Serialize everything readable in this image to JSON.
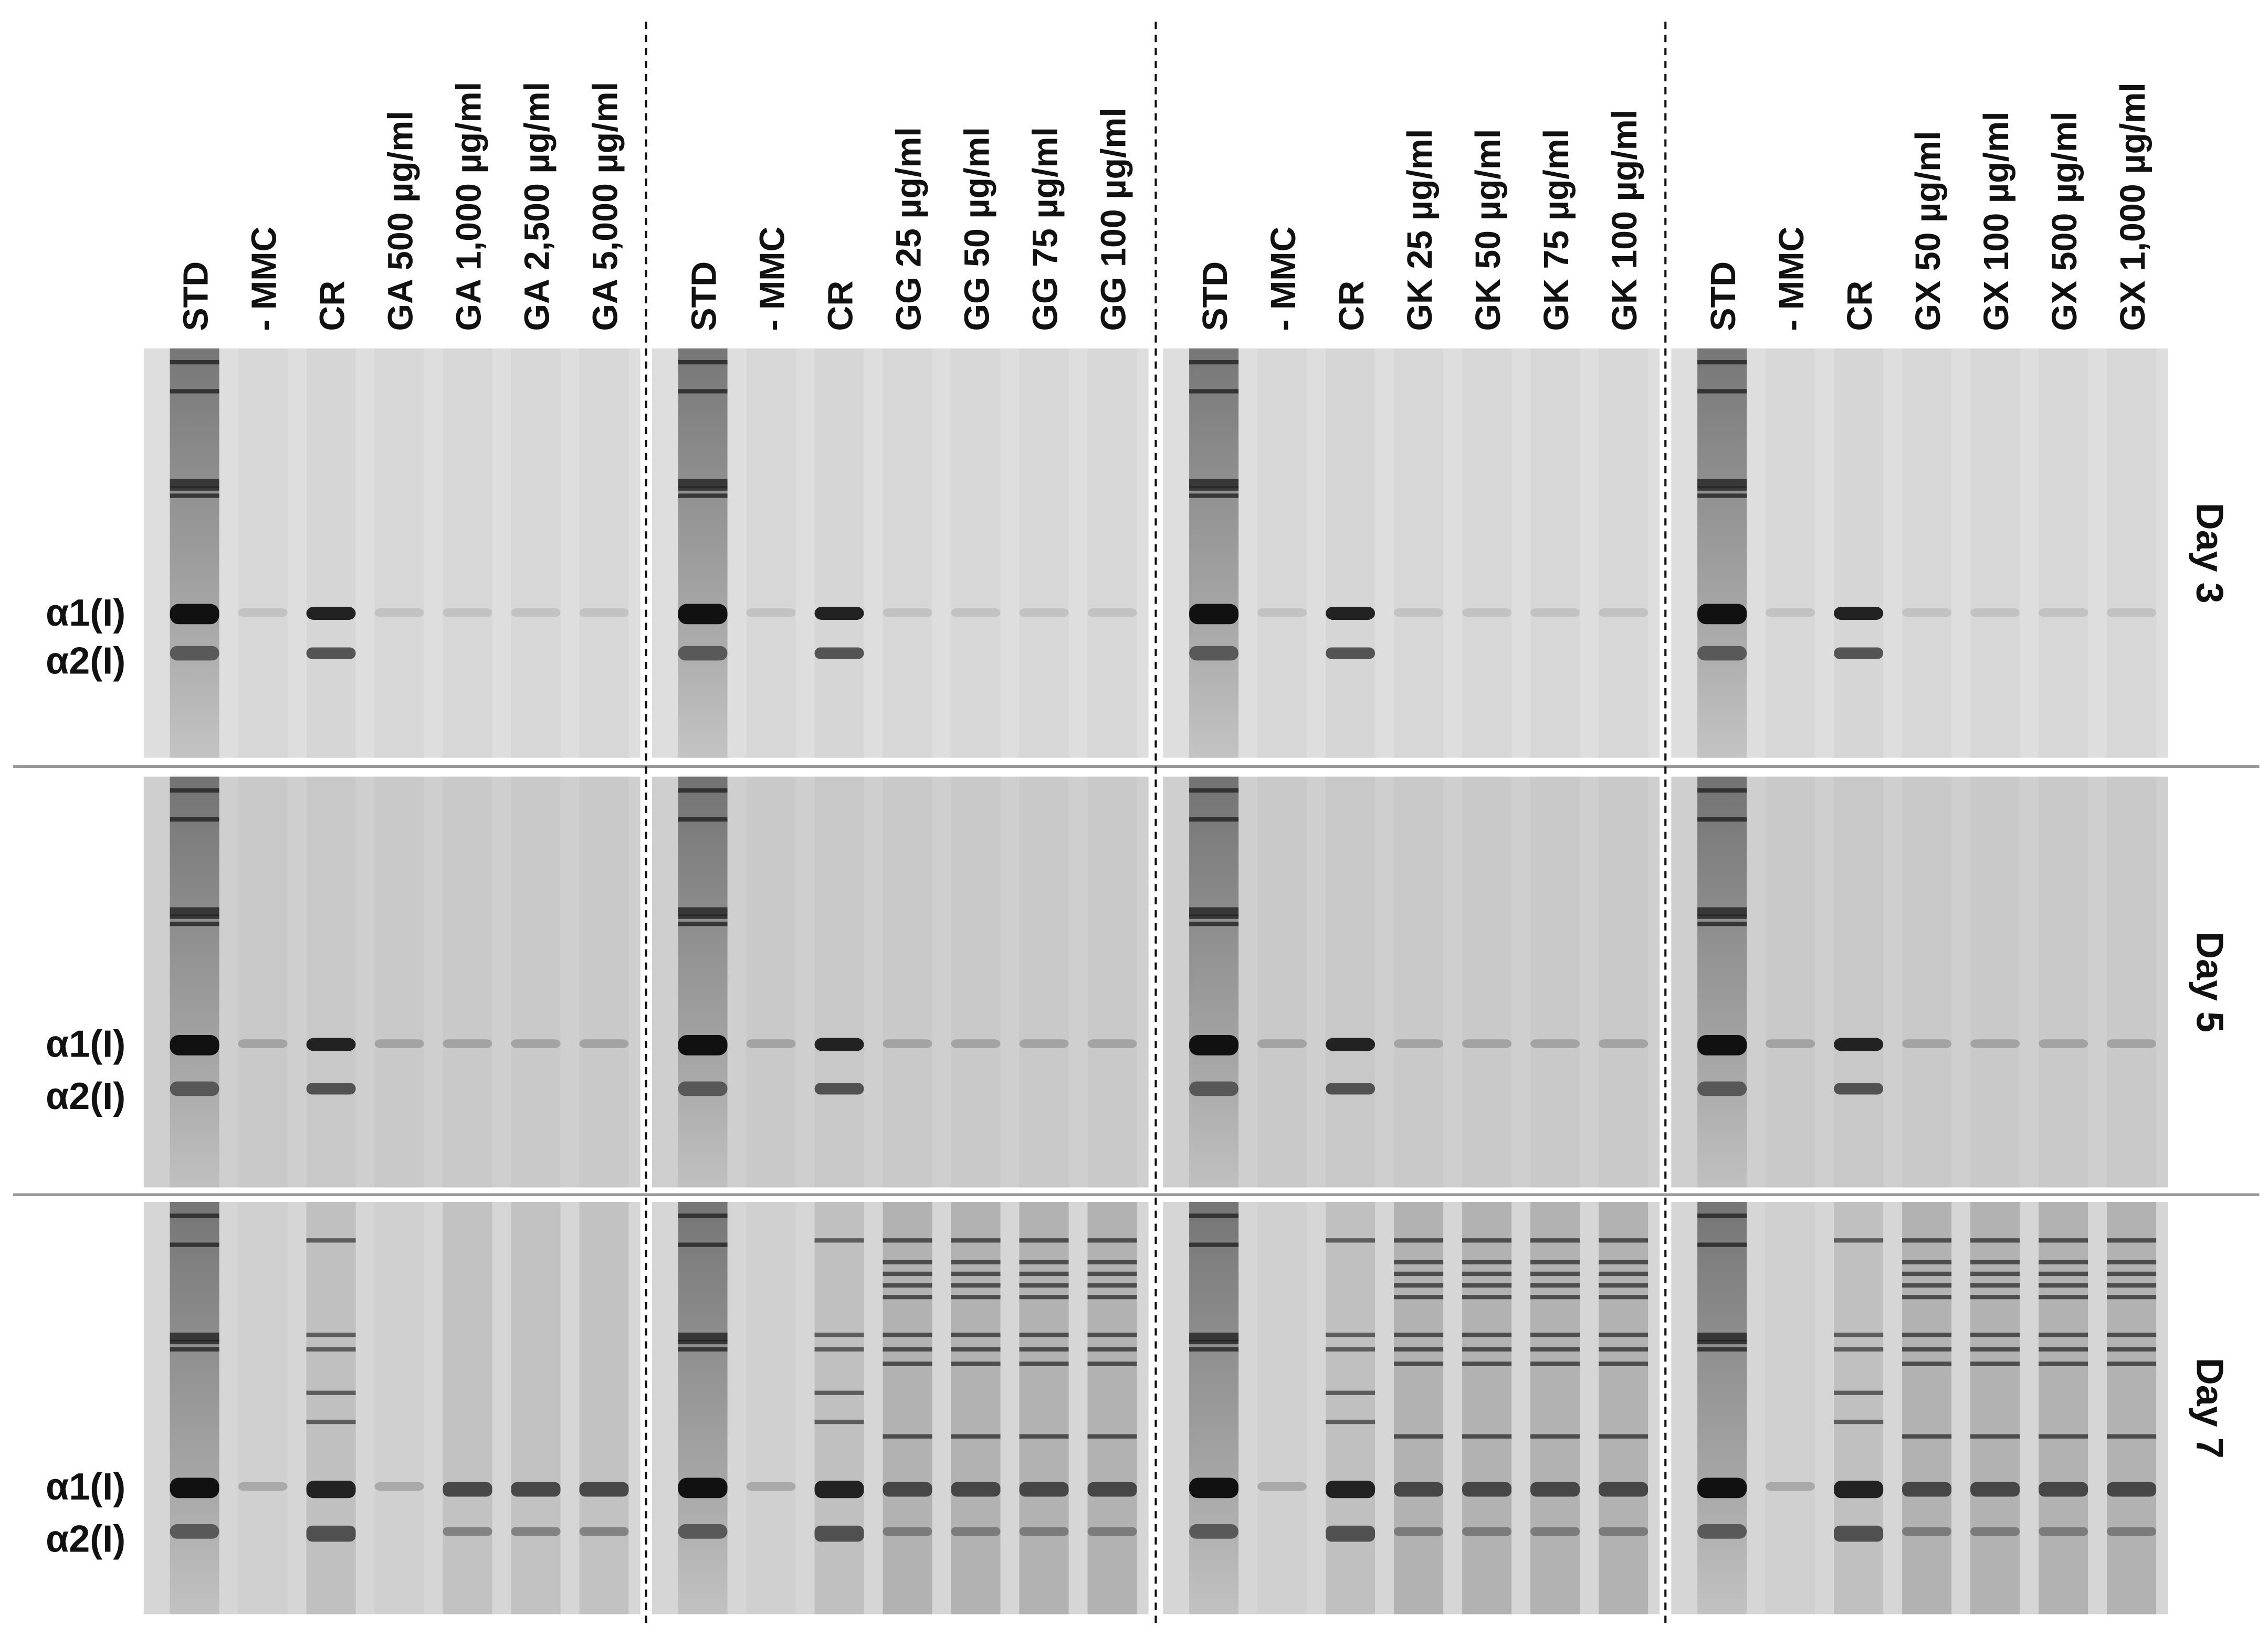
{
  "groups": [
    {
      "lanes": [
        "STD",
        "- MMC",
        "CR",
        "GA 500 µg/ml",
        "GA 1,000 µg/ml",
        "GA 2,500 µg/ml",
        "GA 5,000 µg/ml"
      ]
    },
    {
      "lanes": [
        "STD",
        "- MMC",
        "CR",
        "GG 25 µg/ml",
        "GG 50 µg/ml",
        "GG 75 µg/ml",
        "GG 100 µg/ml"
      ]
    },
    {
      "lanes": [
        "STD",
        "- MMC",
        "CR",
        "GK 25 µg/ml",
        "GK 50 µg/ml",
        "GK 75 µg/ml",
        "GK 100 µg/ml"
      ]
    },
    {
      "lanes": [
        "STD",
        "- MMC",
        "CR",
        "GX 50 µg/ml",
        "GX 100 µg/ml",
        "GX 500 µg/ml",
        "GX 1,000 µg/ml"
      ]
    }
  ],
  "days": [
    "Day 3",
    "Day 5",
    "Day 7"
  ],
  "band_labels": [
    {
      "alpha1": "α1(I)",
      "alpha2": "α2(I)"
    },
    {
      "alpha1": "α1(I)",
      "alpha2": "α2(I)"
    },
    {
      "alpha1": "α1(I)",
      "alpha2": "α2(I)"
    }
  ]
}
